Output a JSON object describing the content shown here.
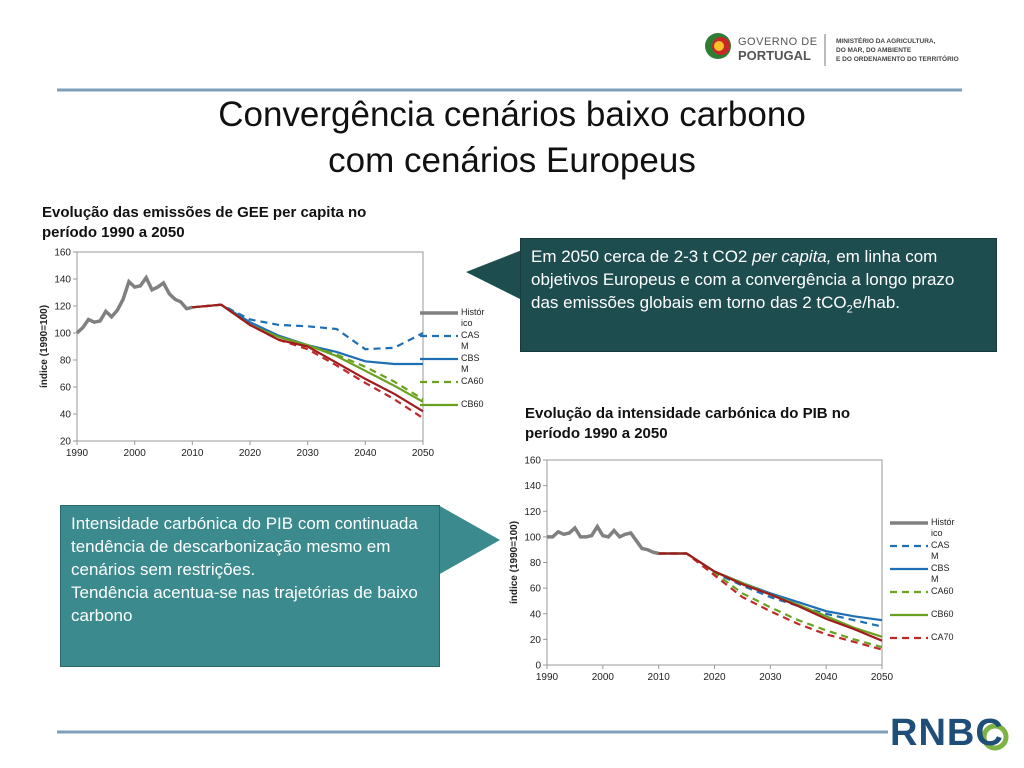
{
  "header": {
    "logo_line1": "GOVERNO DE",
    "logo_line2": "PORTUGAL",
    "ministry": [
      "MINISTÉRIO DA AGRICULTURA,",
      "DO MAR, DO AMBIENTE",
      "E DO ORDENAMENTO DO TERRITÓRIO"
    ]
  },
  "title": [
    "Convergência cenários baixo carbono",
    "com cenários Europeus"
  ],
  "callout_top": {
    "parts": [
      "Em 2050 cerca de 2-3 t CO2 ",
      "per capita,",
      " em linha com objetivos Europeus e com a convergência a longo prazo das emissões globais em torno das 2 tCO",
      "2",
      "e/hab."
    ]
  },
  "callout_bottom": {
    "lines": [
      "Intensidade carbónica do PIB com continuada tendência de descarbonização mesmo em cenários sem restrições.",
      "Tendência acentua-se nas trajetórias de baixo carbono"
    ]
  },
  "footer": {
    "logo": "RNBC"
  },
  "chart_data": [
    {
      "type": "line",
      "title": "Evolução das emissões de GEE per capita no período 1990 a 2050",
      "y_label": "índice (1990=100)",
      "xlim": [
        1990,
        2050
      ],
      "xticks": [
        1990,
        2000,
        2010,
        2020,
        2030,
        2040,
        2050
      ],
      "ylim": [
        20,
        160
      ],
      "yticks": [
        20,
        40,
        60,
        80,
        100,
        120,
        140,
        160
      ],
      "grid": false,
      "series": [
        {
          "name": "Histórico",
          "color": "#808080",
          "dashed": false,
          "x": [
            1990,
            1991,
            1992,
            1993,
            1994,
            1995,
            1996,
            1997,
            1998,
            1999,
            2000,
            2001,
            2002,
            2003,
            2004,
            2005,
            2006,
            2007,
            2008,
            2009,
            2010
          ],
          "values": [
            100,
            104,
            110,
            108,
            109,
            116,
            112,
            117,
            125,
            138,
            134,
            135,
            141,
            132,
            134,
            137,
            129,
            125,
            123,
            118,
            119
          ]
        },
        {
          "name": "CASM",
          "color": "#1f6fb5",
          "dashed": true,
          "x": [
            2010,
            2015,
            2020,
            2025,
            2030,
            2035,
            2040,
            2045,
            2050
          ],
          "values": [
            119,
            121,
            110,
            106,
            105,
            103,
            88,
            89,
            100
          ]
        },
        {
          "name": "CBSM",
          "color": "#1f6fb5",
          "dashed": false,
          "x": [
            2010,
            2015,
            2020,
            2025,
            2030,
            2035,
            2040,
            2045,
            2050
          ],
          "values": [
            119,
            121,
            108,
            98,
            91,
            86,
            79,
            77,
            77
          ]
        },
        {
          "name": "CA60",
          "color": "#6aa121",
          "dashed": true,
          "x": [
            2010,
            2015,
            2020,
            2025,
            2030,
            2035,
            2040,
            2045,
            2050
          ],
          "values": [
            119,
            121,
            106,
            97,
            91,
            84,
            75,
            64,
            51
          ]
        },
        {
          "name": "CB60",
          "color": "#6aa121",
          "dashed": false,
          "x": [
            2010,
            2015,
            2020,
            2025,
            2030,
            2035,
            2040,
            2045,
            2050
          ],
          "values": [
            119,
            121,
            106,
            97,
            91,
            83,
            72,
            61,
            49
          ]
        },
        {
          "color": "#c0282a",
          "dashed": true,
          "x": [
            2010,
            2015,
            2020,
            2025,
            2030,
            2035,
            2040,
            2045,
            2050
          ],
          "values": [
            119,
            121,
            106,
            95,
            88,
            76,
            63,
            51,
            37
          ]
        },
        {
          "color": "#a01c1c",
          "dashed": false,
          "x": [
            2010,
            2015,
            2020,
            2025,
            2030,
            2035,
            2040,
            2045,
            2050
          ],
          "values": [
            119,
            121,
            106,
            95,
            90,
            78,
            66,
            55,
            42
          ]
        }
      ]
    },
    {
      "type": "line",
      "title": "Evolução da intensidade carbónica do PIB no período 1990 a 2050",
      "y_label": "índice (1990=100)",
      "xlim": [
        1990,
        2050
      ],
      "xticks": [
        1990,
        2000,
        2010,
        2020,
        2030,
        2040,
        2050
      ],
      "ylim": [
        0,
        160
      ],
      "yticks": [
        0,
        20,
        40,
        60,
        80,
        100,
        120,
        140,
        160
      ],
      "grid": false,
      "series": [
        {
          "name": "Histórico",
          "color": "#808080",
          "dashed": false,
          "x": [
            1990,
            1991,
            1992,
            1993,
            1994,
            1995,
            1996,
            1997,
            1998,
            1999,
            2000,
            2001,
            2002,
            2003,
            2004,
            2005,
            2006,
            2007,
            2008,
            2009,
            2010
          ],
          "values": [
            100,
            100,
            104,
            102,
            103,
            107,
            100,
            100,
            101,
            108,
            101,
            100,
            105,
            100,
            102,
            103,
            97,
            91,
            90,
            88,
            87
          ]
        },
        {
          "name": "CASM",
          "color": "#1f6fb5",
          "dashed": true,
          "x": [
            2010,
            2015,
            2020,
            2025,
            2030,
            2035,
            2040,
            2045,
            2050
          ],
          "values": [
            87,
            87,
            72,
            62,
            53,
            46,
            40,
            35,
            30
          ]
        },
        {
          "name": "CBSM",
          "color": "#1f6fb5",
          "dashed": false,
          "x": [
            2010,
            2015,
            2020,
            2025,
            2030,
            2035,
            2040,
            2045,
            2050
          ],
          "values": [
            87,
            87,
            73,
            64,
            56,
            49,
            42,
            38,
            35
          ]
        },
        {
          "name": "CA60",
          "color": "#6aa121",
          "dashed": true,
          "x": [
            2010,
            2015,
            2020,
            2025,
            2030,
            2035,
            2040,
            2045,
            2050
          ],
          "values": [
            87,
            87,
            72,
            56,
            45,
            35,
            27,
            20,
            14
          ]
        },
        {
          "name": "CB60",
          "color": "#6aa121",
          "dashed": false,
          "x": [
            2010,
            2015,
            2020,
            2025,
            2030,
            2035,
            2040,
            2045,
            2050
          ],
          "values": [
            87,
            87,
            73,
            64,
            55,
            47,
            38,
            29,
            22
          ]
        },
        {
          "name": "CA70",
          "color": "#c0282a",
          "dashed": true,
          "x": [
            2010,
            2015,
            2020,
            2025,
            2030,
            2035,
            2040,
            2045,
            2050
          ],
          "values": [
            87,
            87,
            70,
            53,
            42,
            32,
            24,
            18,
            12
          ]
        },
        {
          "color": "#a01c1c",
          "dashed": false,
          "x": [
            2010,
            2015,
            2020,
            2025,
            2030,
            2035,
            2040,
            2045,
            2050
          ],
          "values": [
            87,
            87,
            73,
            63,
            55,
            46,
            36,
            28,
            19
          ]
        }
      ]
    }
  ]
}
